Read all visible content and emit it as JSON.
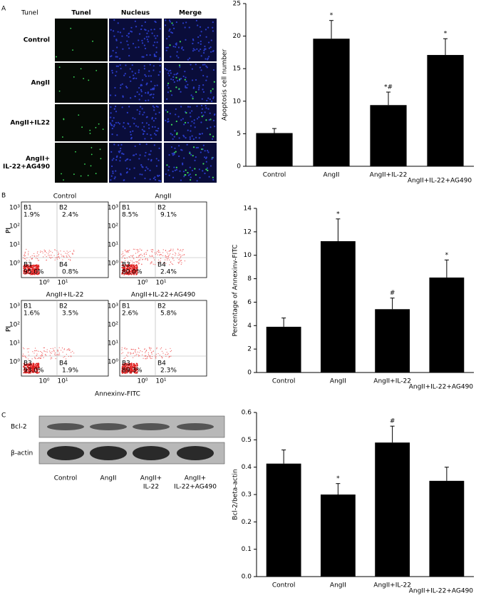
{
  "panel_labels": [
    "A",
    "B",
    "C"
  ],
  "tunel": {
    "corner_label": "Tunel",
    "columns": [
      "Tunel",
      "Nucleus",
      "Merge"
    ],
    "rows": [
      [
        "Control"
      ],
      [
        "AngII"
      ],
      [
        "AngII+IL22"
      ],
      [
        "AngII+",
        "IL-22+AG490"
      ]
    ]
  },
  "flow": {
    "y_label": "PI",
    "x_label": "Annexinv-FITC",
    "y_ticks": [
      "10³",
      "10²",
      "10¹",
      "10⁰"
    ],
    "x_ticks": [
      "10⁰",
      "10¹"
    ],
    "plots": [
      {
        "title": "Control",
        "quadrants": [
          [
            "B1",
            "1.9%"
          ],
          [
            "B2",
            "2.4%"
          ],
          [
            "B3",
            "95.0%"
          ],
          [
            "B4",
            "0.8%"
          ]
        ]
      },
      {
        "title": "AngII",
        "quadrants": [
          [
            "B1",
            "8.5%"
          ],
          [
            "B2",
            "9.1%"
          ],
          [
            "B3",
            "80.0%"
          ],
          [
            "B4",
            "2.4%"
          ]
        ]
      },
      {
        "title": "AngII+IL-22",
        "quadrants": [
          [
            "B1",
            "1.6%"
          ],
          [
            "B2",
            "3.5%"
          ],
          [
            "B3",
            "93.0%"
          ],
          [
            "B4",
            "1.9%"
          ]
        ]
      },
      {
        "title": "AngII+IL-22+AG490",
        "quadrants": [
          [
            "B1",
            "2.6%"
          ],
          [
            "B2",
            "5.8%"
          ],
          [
            "B3",
            "89.3%"
          ],
          [
            "B4",
            "2.3%"
          ]
        ]
      }
    ]
  },
  "blot": {
    "bands": [
      "Bcl-2",
      "β-actin"
    ],
    "lanes": [
      [
        "Control"
      ],
      [
        "AngII"
      ],
      [
        "AngII+",
        "IL-22"
      ],
      [
        "AngII+",
        "IL-22+AG490"
      ]
    ]
  },
  "chart_data": [
    {
      "type": "bar",
      "y_label": "Apoptosis cell number",
      "categories": [
        "Control",
        "AngII",
        "AngII+IL-22",
        "AngII+IL-22+AG490"
      ],
      "values": [
        5.1,
        19.6,
        9.4,
        17.1
      ],
      "errors": [
        0.7,
        2.8,
        2.0,
        2.5
      ],
      "annotations": [
        null,
        "*",
        "*#",
        "*"
      ],
      "color": "#000000",
      "ylim": [
        0,
        25
      ],
      "yticks": [
        0,
        5,
        10,
        15,
        20,
        25
      ]
    },
    {
      "type": "bar",
      "y_label": "Percentage of Annexinv-FITC",
      "categories": [
        "Control",
        "AngII",
        "AngII+IL-22",
        "AngII+IL-22+AG490"
      ],
      "values": [
        3.9,
        11.2,
        5.4,
        8.1
      ],
      "errors": [
        0.75,
        1.9,
        0.95,
        1.5
      ],
      "annotations": [
        null,
        "*",
        "#",
        "*"
      ],
      "color": "#000000",
      "ylim": [
        0,
        14
      ],
      "yticks": [
        0,
        2,
        4,
        6,
        8,
        10,
        12,
        14
      ]
    },
    {
      "type": "bar",
      "y_label": "Bcl-2/beta-actin",
      "categories": [
        "Control",
        "AngII",
        "AngII+IL-22",
        "AngII+IL-22+AG490"
      ],
      "values": [
        0.413,
        0.3,
        0.49,
        0.35
      ],
      "errors": [
        0.05,
        0.04,
        0.06,
        0.05
      ],
      "annotations": [
        null,
        "*",
        "#",
        null
      ],
      "color": "#000000",
      "ylim": [
        0,
        0.6
      ],
      "yticks": [
        {
          "value": 0,
          "label": "0.0"
        },
        0.1,
        0.2,
        0.3,
        0.4,
        0.5,
        0.6
      ]
    }
  ]
}
